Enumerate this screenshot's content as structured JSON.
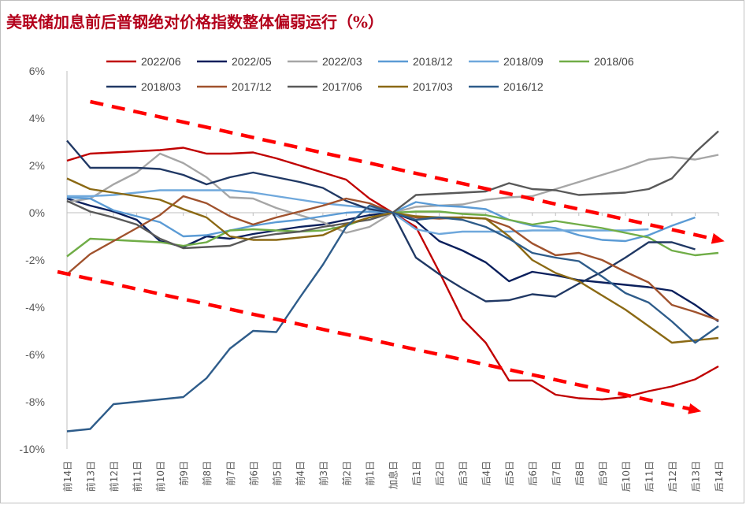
{
  "chart_data": {
    "type": "line",
    "title": "美联储加息前后普钢绝对价格指数整体偏弱运行（%）",
    "xlabel": "",
    "ylabel": "",
    "ylim": [
      -10,
      6
    ],
    "y_ticks": [
      6,
      4,
      2,
      0,
      -2,
      -4,
      -6,
      -8,
      -10
    ],
    "y_tick_labels": [
      "6%",
      "4%",
      "2%",
      "0%",
      "-2%",
      "-4%",
      "-6%",
      "-8%",
      "-10%"
    ],
    "grid": false,
    "legend_position": "top",
    "categories": [
      "前14日",
      "前13日",
      "前12日",
      "前11日",
      "前10日",
      "前9日",
      "前8日",
      "前7日",
      "前6日",
      "前5日",
      "前4日",
      "前3日",
      "前2日",
      "前1日",
      "加息日",
      "后1日",
      "后2日",
      "后3日",
      "后4日",
      "后5日",
      "后6日",
      "后7日",
      "后8日",
      "后9日",
      "后10日",
      "后11日",
      "后12日",
      "后13日",
      "后14日"
    ],
    "series": [
      {
        "name": "2022/06",
        "color": "#c00000",
        "values": [
          2.2,
          2.5,
          2.55,
          2.6,
          2.65,
          2.75,
          2.5,
          2.5,
          2.55,
          2.3,
          2.0,
          1.7,
          1.4,
          0.6,
          0,
          -0.6,
          -2.5,
          -4.5,
          -5.5,
          -7.1,
          -7.1,
          -7.7,
          -7.85,
          -7.9,
          -7.8,
          -7.55,
          -7.35,
          -7.05,
          -6.5
        ]
      },
      {
        "name": "2022/05",
        "color": "#0a1f5c",
        "values": [
          0.6,
          0.3,
          0.05,
          -0.3,
          -1.2,
          -1.45,
          -1.0,
          -1.1,
          -0.9,
          -0.75,
          -0.6,
          -0.5,
          -0.3,
          -0.1,
          0,
          -0.35,
          -1.2,
          -1.6,
          -2.1,
          -2.9,
          -2.5,
          -2.65,
          -2.85,
          -2.95,
          -3.05,
          -3.15,
          -3.3,
          -3.9,
          -4.6
        ]
      },
      {
        "name": "2022/03",
        "color": "#a6a6a6",
        "values": [
          0.45,
          0.6,
          1.2,
          1.7,
          2.5,
          2.1,
          1.5,
          0.65,
          0.6,
          0.2,
          -0.1,
          -0.4,
          -0.85,
          -0.6,
          0,
          0.25,
          0.3,
          0.35,
          0.55,
          0.65,
          0.7,
          1.0,
          1.3,
          1.6,
          1.9,
          2.25,
          2.35,
          2.25,
          2.45
        ]
      },
      {
        "name": "2018/12",
        "color": "#5b9bd5",
        "values": [
          0.65,
          0.6,
          0.1,
          -0.15,
          -0.4,
          -1.0,
          -0.95,
          -0.75,
          -0.55,
          -0.4,
          -0.3,
          -0.15,
          0.0,
          0.05,
          0,
          0.45,
          0.3,
          0.25,
          0.15,
          -0.3,
          -0.55,
          -0.65,
          -0.95,
          -1.15,
          -1.2,
          -0.95,
          -0.55,
          -0.2,
          null
        ]
      },
      {
        "name": "2018/09",
        "color": "#6fa8dc",
        "values": [
          0.7,
          0.7,
          0.75,
          0.85,
          0.95,
          0.95,
          0.95,
          0.95,
          0.85,
          0.7,
          0.55,
          0.4,
          0.3,
          0.2,
          0,
          -0.7,
          -0.9,
          -0.8,
          -0.8,
          -0.8,
          -0.75,
          -0.75,
          -0.75,
          -0.75,
          -0.75,
          -0.7,
          null,
          null,
          null
        ]
      },
      {
        "name": "2018/06",
        "color": "#70ad47",
        "values": [
          -1.85,
          -1.1,
          -1.15,
          -1.2,
          -1.25,
          -1.4,
          -1.25,
          -0.75,
          -0.7,
          -0.75,
          -0.8,
          -0.75,
          -0.55,
          -0.2,
          0,
          0.05,
          0.05,
          -0.05,
          -0.1,
          -0.3,
          -0.5,
          -0.35,
          -0.5,
          -0.65,
          -0.85,
          -1.05,
          -1.6,
          -1.8,
          -1.7
        ]
      },
      {
        "name": "2018/03",
        "color": "#203864",
        "values": [
          3.05,
          1.9,
          1.9,
          1.9,
          1.85,
          1.6,
          1.2,
          1.5,
          1.7,
          1.5,
          1.3,
          1.05,
          0.5,
          0.15,
          0,
          -1.9,
          -2.6,
          -3.2,
          -3.75,
          -3.7,
          -3.45,
          -3.55,
          -3.0,
          -2.5,
          -1.9,
          -1.25,
          -1.25,
          -1.55,
          null
        ]
      },
      {
        "name": "2017/12",
        "color": "#a0522d",
        "values": [
          -2.6,
          -1.75,
          -1.2,
          -0.65,
          -0.1,
          0.7,
          0.4,
          -0.15,
          -0.5,
          -0.2,
          0.05,
          0.3,
          0.6,
          0.4,
          0,
          -0.2,
          -0.25,
          -0.2,
          -0.25,
          -0.6,
          -1.3,
          -1.8,
          -1.7,
          -2.0,
          -2.5,
          -2.95,
          -3.9,
          -4.2,
          -4.55
        ]
      },
      {
        "name": "2017/06",
        "color": "#595959",
        "values": [
          0.5,
          0.05,
          -0.2,
          -0.5,
          -1.1,
          -1.5,
          -1.45,
          -1.4,
          -1.05,
          -0.9,
          -0.8,
          -0.6,
          -0.45,
          -0.3,
          0,
          0.75,
          0.8,
          0.85,
          0.9,
          1.25,
          1.0,
          0.95,
          0.75,
          0.8,
          0.85,
          1.0,
          1.45,
          2.55,
          3.45
        ]
      },
      {
        "name": "2017/03",
        "color": "#8b6914",
        "values": [
          1.45,
          1.0,
          0.85,
          0.7,
          0.55,
          0.15,
          -0.2,
          -1.0,
          -1.15,
          -1.15,
          -1.05,
          -0.95,
          -0.5,
          -0.2,
          0,
          -0.15,
          -0.2,
          -0.2,
          -0.25,
          -1.0,
          -2.0,
          -2.55,
          -2.9,
          -3.5,
          -4.1,
          -4.8,
          -5.5,
          -5.4,
          -5.3
        ]
      },
      {
        "name": "2016/12",
        "color": "#2e5c8a",
        "values": [
          -9.25,
          -9.15,
          -8.1,
          -8.0,
          -7.9,
          -7.8,
          -7.0,
          -5.75,
          -5.0,
          -5.05,
          -3.6,
          -2.2,
          -0.6,
          0.3,
          0,
          -0.3,
          -0.2,
          -0.3,
          -0.6,
          -1.1,
          -1.7,
          -1.9,
          -2.05,
          -2.7,
          -3.4,
          -3.8,
          -4.6,
          -5.5,
          -4.8
        ]
      }
    ],
    "annotations": [
      {
        "type": "dashed-arrow",
        "color": "#ff0000",
        "from": {
          "x": "前13日",
          "y": 4.7
        },
        "to": {
          "x": "后14日",
          "y": -1.15
        }
      },
      {
        "type": "dashed-arrow",
        "color": "#ff0000",
        "from": {
          "x": "前14日",
          "y": -2.5
        },
        "to": {
          "x": "后13日",
          "y": -8.35
        }
      }
    ]
  }
}
